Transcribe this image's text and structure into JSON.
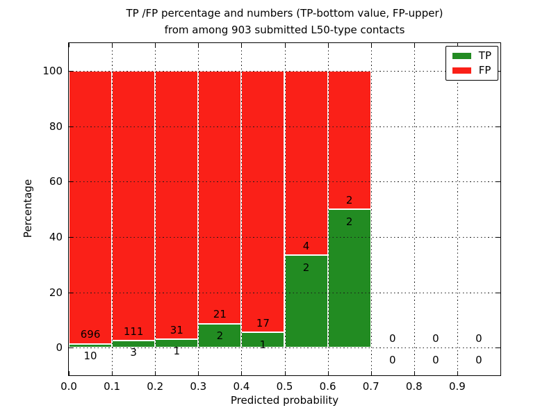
{
  "figure": {
    "title_line1": "TP /FP percentage and numbers (TP-bottom value, FP-upper)",
    "title_line2": "from among 903 submitted L50-type contacts",
    "xlabel": "Predicted probability",
    "ylabel": "Percentage"
  },
  "chart_data": {
    "type": "bar",
    "stacked": true,
    "title": "TP /FP percentage and numbers (TP-bottom value, FP-upper) from among 903 submitted L50-type contacts",
    "xlabel": "Predicted probability",
    "ylabel": "Percentage",
    "total_contacts": 903,
    "xlim": [
      0.0,
      1.0
    ],
    "ylim": [
      -10,
      110
    ],
    "grid": true,
    "legend_position": "upper right",
    "bar_width": 0.1,
    "x_ticks": [
      {
        "v": 0.0,
        "label": "0.0"
      },
      {
        "v": 0.1,
        "label": "0.1"
      },
      {
        "v": 0.2,
        "label": "0.2"
      },
      {
        "v": 0.3,
        "label": "0.3"
      },
      {
        "v": 0.4,
        "label": "0.4"
      },
      {
        "v": 0.5,
        "label": "0.5"
      },
      {
        "v": 0.6,
        "label": "0.6"
      },
      {
        "v": 0.7,
        "label": "0.7"
      },
      {
        "v": 0.8,
        "label": "0.8"
      },
      {
        "v": 0.9,
        "label": "0.9"
      },
      {
        "v": 1.0,
        "label": ""
      }
    ],
    "y_ticks": [
      {
        "v": 0,
        "label": "0"
      },
      {
        "v": 20,
        "label": "20"
      },
      {
        "v": 40,
        "label": "40"
      },
      {
        "v": 60,
        "label": "60"
      },
      {
        "v": 80,
        "label": "80"
      },
      {
        "v": 100,
        "label": "100"
      }
    ],
    "series": [
      {
        "name": "TP",
        "color": "#228b22",
        "counts": [
          10,
          3,
          1,
          2,
          1,
          2,
          2,
          0,
          0,
          0
        ]
      },
      {
        "name": "FP",
        "color": "#fa2018",
        "counts": [
          696,
          111,
          31,
          21,
          17,
          4,
          2,
          0,
          0,
          0
        ]
      }
    ],
    "bins": [
      {
        "x_start": 0.0,
        "tp": 10,
        "fp": 696
      },
      {
        "x_start": 0.1,
        "tp": 3,
        "fp": 111
      },
      {
        "x_start": 0.2,
        "tp": 1,
        "fp": 31
      },
      {
        "x_start": 0.3,
        "tp": 2,
        "fp": 21
      },
      {
        "x_start": 0.4,
        "tp": 1,
        "fp": 17
      },
      {
        "x_start": 0.5,
        "tp": 2,
        "fp": 4
      },
      {
        "x_start": 0.6,
        "tp": 2,
        "fp": 2
      },
      {
        "x_start": 0.7,
        "tp": 0,
        "fp": 0
      },
      {
        "x_start": 0.8,
        "tp": 0,
        "fp": 0
      },
      {
        "x_start": 0.9,
        "tp": 0,
        "fp": 0
      }
    ]
  }
}
